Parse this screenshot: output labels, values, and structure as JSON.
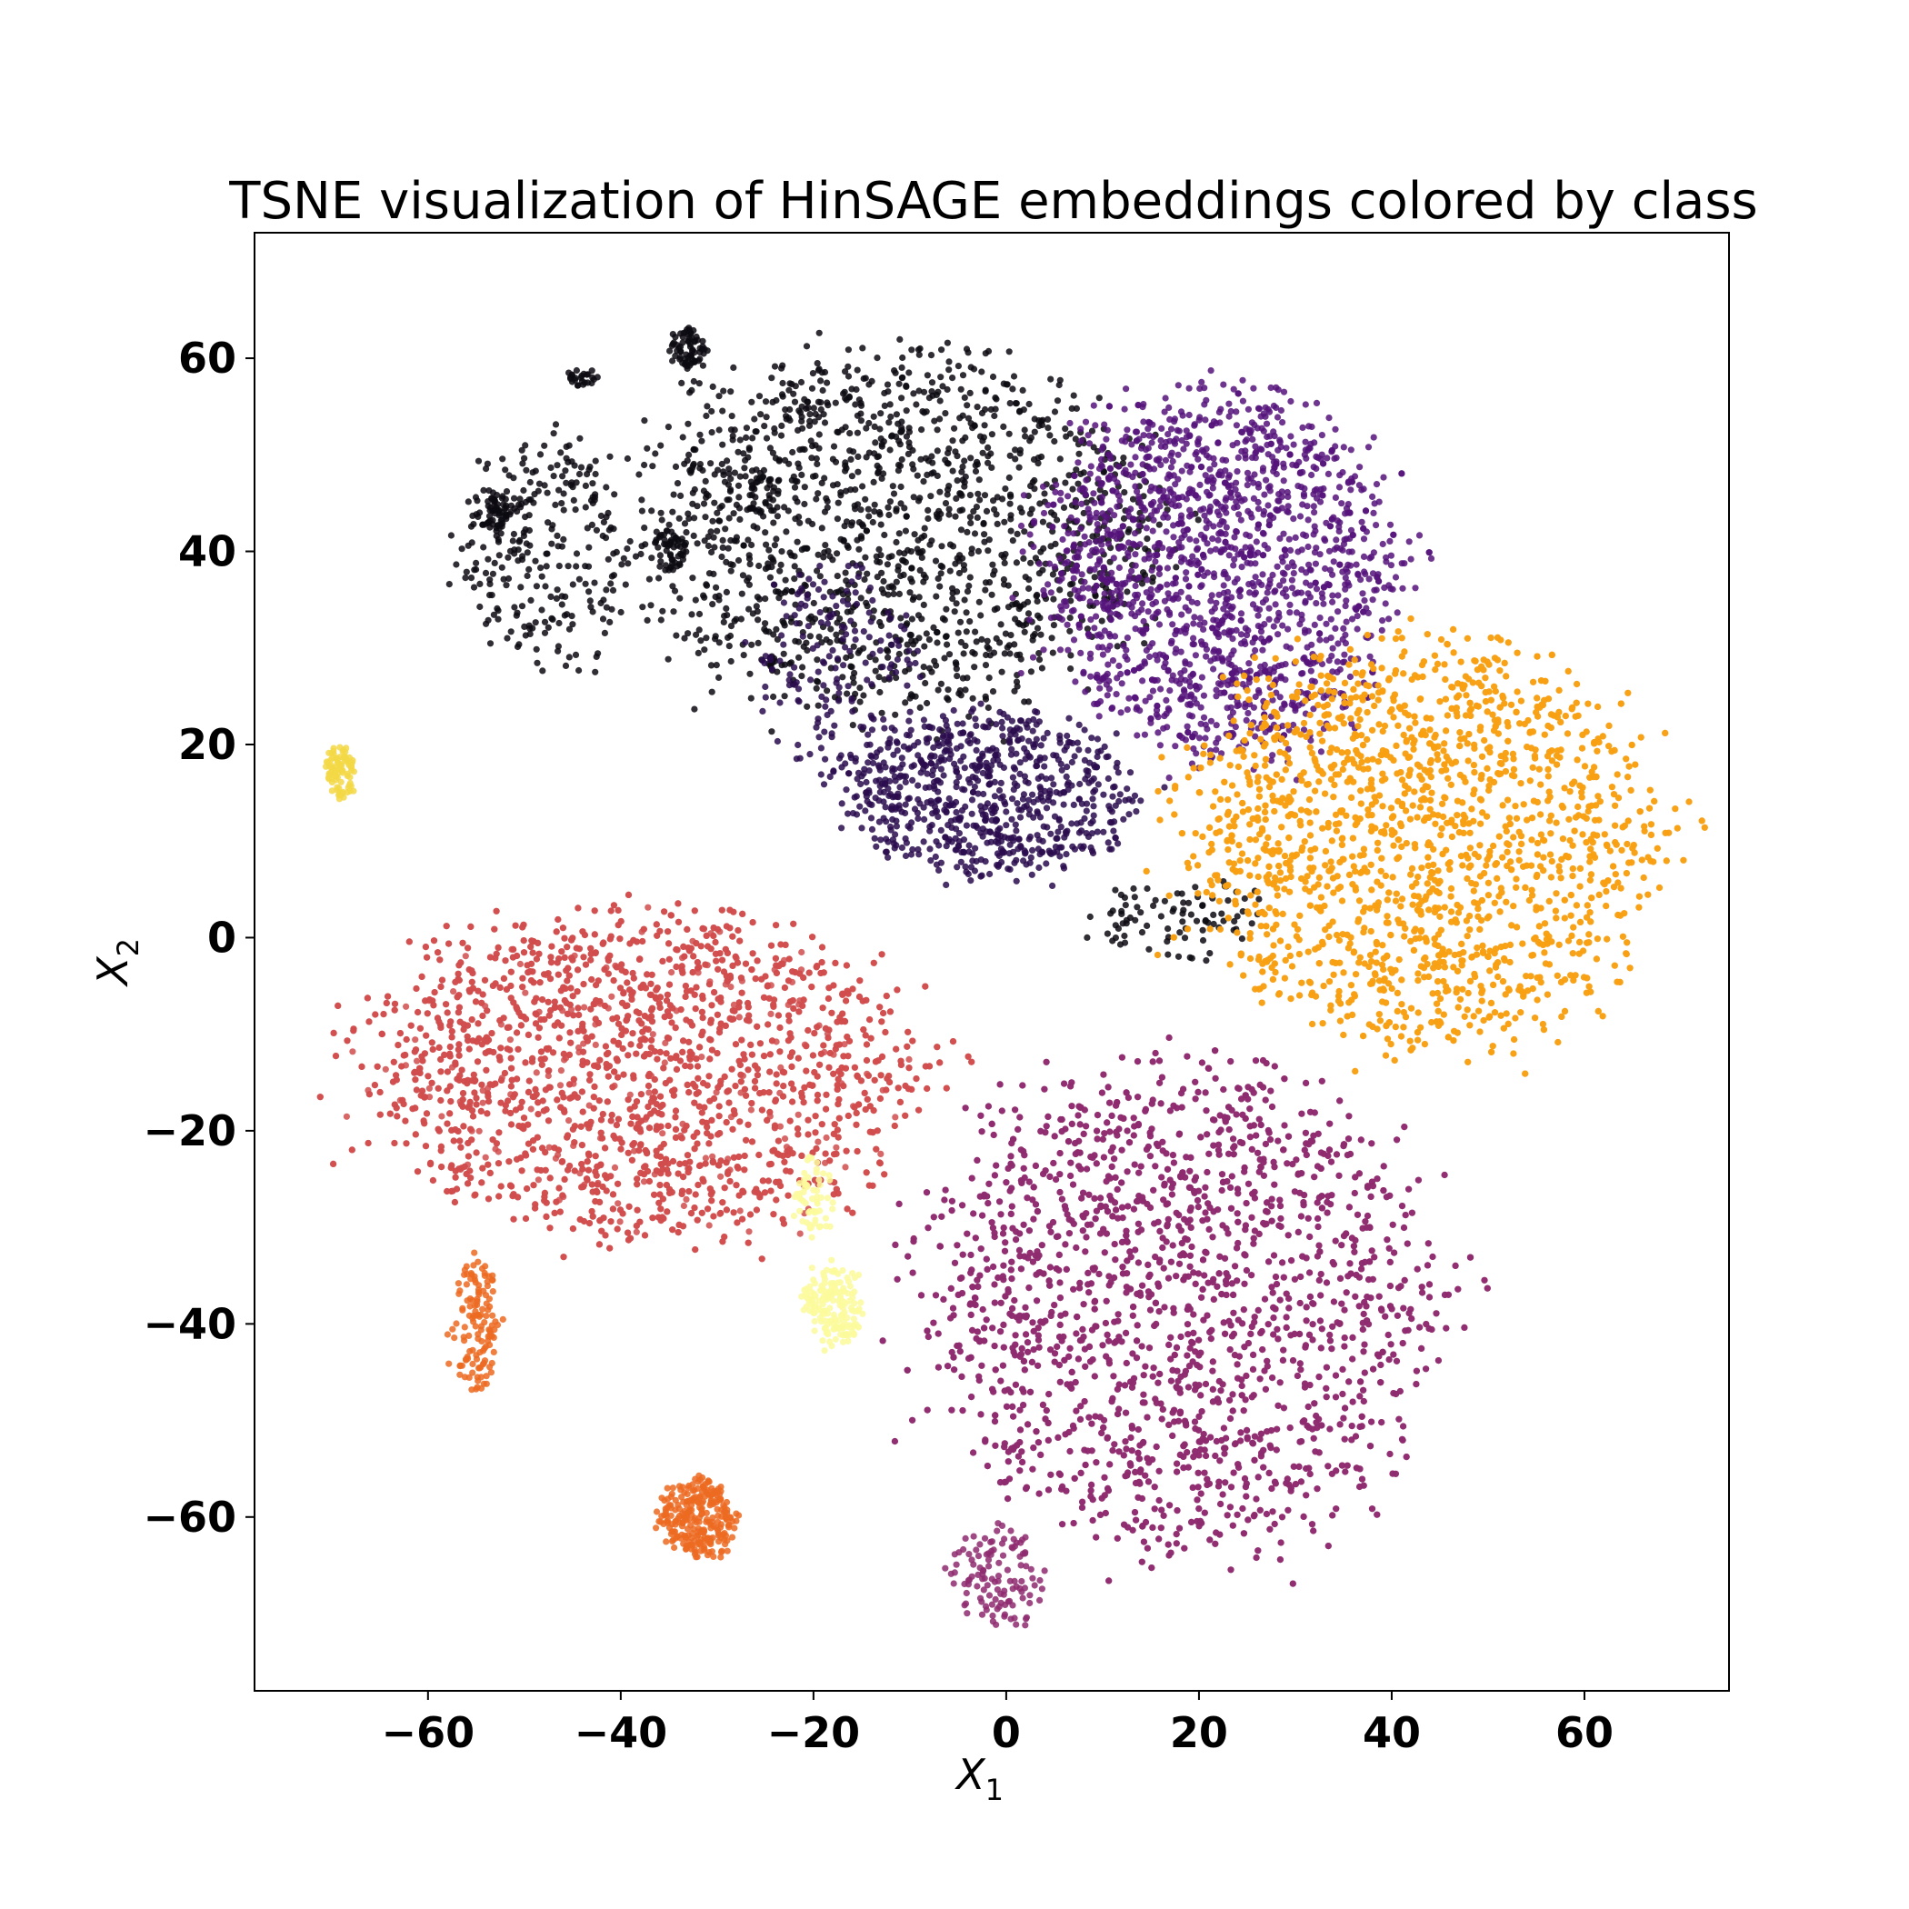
{
  "chart_data": {
    "type": "scatter",
    "title": "TSNE visualization of HinSAGE embeddings colored by class",
    "xlabel": "X",
    "xlabel_sub": "1",
    "ylabel": "X",
    "ylabel_sub": "2",
    "xlim": [
      -78,
      75
    ],
    "ylim": [
      -78,
      73
    ],
    "xticks": [
      -60,
      -40,
      -20,
      0,
      20,
      40,
      60
    ],
    "yticks": [
      -60,
      -40,
      -20,
      0,
      20,
      40,
      60
    ],
    "xtick_labels": [
      "−60",
      "−40",
      "−20",
      "0",
      "20",
      "40",
      "60"
    ],
    "ytick_labels": [
      "−60",
      "−40",
      "−20",
      "0",
      "20",
      "40",
      "60"
    ],
    "grid": false,
    "legend": false,
    "colormap": "inferno",
    "series": [
      {
        "color": "#0d0a12",
        "clusters": [
          {
            "cx": -12,
            "cy": 42,
            "rx": 26,
            "ry": 18,
            "n": 1500
          },
          {
            "cx": -48,
            "cy": 40,
            "rx": 9,
            "ry": 12,
            "n": 260
          },
          {
            "cx": -33,
            "cy": 61,
            "rx": 2,
            "ry": 2,
            "n": 70
          },
          {
            "cx": -44,
            "cy": 58,
            "rx": 1.5,
            "ry": 1,
            "n": 25
          },
          {
            "cx": -53,
            "cy": 44,
            "rx": 2,
            "ry": 2,
            "n": 60
          },
          {
            "cx": -35,
            "cy": 40,
            "rx": 2,
            "ry": 2,
            "n": 45
          },
          {
            "cx": -25,
            "cy": 46,
            "rx": 2,
            "ry": 2,
            "n": 30
          },
          {
            "cx": 18,
            "cy": 2,
            "rx": 9,
            "ry": 4,
            "n": 90
          }
        ]
      },
      {
        "color": "#2a0c4e",
        "clusters": [
          {
            "cx": -2,
            "cy": 15,
            "rx": 15,
            "ry": 8,
            "n": 750
          },
          {
            "cx": -18,
            "cy": 28,
            "rx": 8,
            "ry": 10,
            "n": 160
          }
        ]
      },
      {
        "color": "#55137a",
        "clusters": [
          {
            "cx": 22,
            "cy": 38,
            "rx": 18,
            "ry": 18,
            "n": 1700
          }
        ]
      },
      {
        "color": "#8e2a6e",
        "clusters": [
          {
            "cx": 18,
            "cy": -38,
            "rx": 26,
            "ry": 24,
            "n": 3300
          },
          {
            "cx": -1,
            "cy": -66,
            "rx": 5,
            "ry": 5,
            "n": 120
          }
        ]
      },
      {
        "color": "#d14c4c",
        "clusters": [
          {
            "cx": -38,
            "cy": -14,
            "rx": 28,
            "ry": 16,
            "n": 3000
          }
        ]
      },
      {
        "color": "#ec6a21",
        "clusters": [
          {
            "cx": -32,
            "cy": -60,
            "rx": 4,
            "ry": 4,
            "n": 260
          },
          {
            "cx": -55,
            "cy": -40,
            "rx": 2.5,
            "ry": 7,
            "n": 130
          }
        ]
      },
      {
        "color": "#f8a013",
        "clusters": [
          {
            "cx": 43,
            "cy": 10,
            "rx": 24,
            "ry": 20,
            "n": 3300
          }
        ]
      },
      {
        "color": "#f3d847",
        "clusters": [
          {
            "cx": -69,
            "cy": 17,
            "rx": 1.5,
            "ry": 2.5,
            "n": 90
          }
        ]
      },
      {
        "color": "#fbfa9c",
        "clusters": [
          {
            "cx": -18,
            "cy": -38,
            "rx": 3,
            "ry": 4,
            "n": 170
          },
          {
            "cx": -20,
            "cy": -27,
            "rx": 2,
            "ry": 4,
            "n": 60
          }
        ]
      }
    ]
  }
}
